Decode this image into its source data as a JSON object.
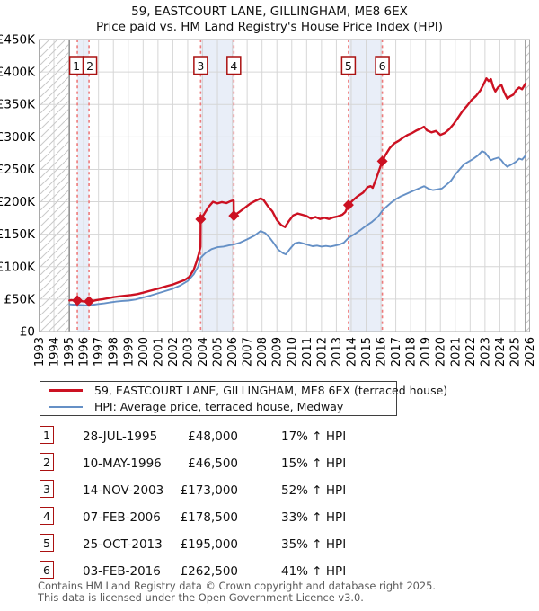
{
  "header": {
    "title": "59, EASTCOURT LANE, GILLINGHAM, ME8 6EX",
    "subtitle": "Price paid vs. HM Land Registry's House Price Index (HPI)"
  },
  "legend": {
    "entries": [
      {
        "label": "59, EASTCOURT LANE, GILLINGHAM, ME8 6EX (terraced house)",
        "color": "#cc1122"
      },
      {
        "label": "HPI: Average price, terraced house, Medway",
        "color": "#6590c6"
      }
    ]
  },
  "table": {
    "rows": [
      {
        "num": "1",
        "date": "28-JUL-1995",
        "price": "£48,000",
        "hpi": "17% ↑ HPI"
      },
      {
        "num": "2",
        "date": "10-MAY-1996",
        "price": "£46,500",
        "hpi": "15% ↑ HPI"
      },
      {
        "num": "3",
        "date": "14-NOV-2003",
        "price": "£173,000",
        "hpi": "52% ↑ HPI"
      },
      {
        "num": "4",
        "date": "07-FEB-2006",
        "price": "£178,500",
        "hpi": "33% ↑ HPI"
      },
      {
        "num": "5",
        "date": "25-OCT-2013",
        "price": "£195,000",
        "hpi": "35% ↑ HPI"
      },
      {
        "num": "6",
        "date": "03-FEB-2016",
        "price": "£262,500",
        "hpi": "41% ↑ HPI"
      }
    ]
  },
  "footer": {
    "line1": "Contains HM Land Registry data © Crown copyright and database right 2025.",
    "line2": "This data is licensed under the Open Government Licence v3.0."
  },
  "chart_data": {
    "type": "line",
    "title": "59, EASTCOURT LANE, GILLINGHAM, ME8 6EX",
    "subtitle": "Price paid vs. HM Land Registry's House Price Index (HPI)",
    "x_axis": {
      "range": [
        1993,
        2026
      ],
      "years": [
        1993,
        1994,
        1995,
        1996,
        1997,
        1998,
        1999,
        2000,
        2001,
        2002,
        2003,
        2004,
        2005,
        2006,
        2007,
        2008,
        2009,
        2010,
        2011,
        2012,
        2013,
        2014,
        2015,
        2016,
        2017,
        2018,
        2019,
        2020,
        2021,
        2022,
        2023,
        2024,
        2025,
        2026
      ]
    },
    "y_axis": {
      "range": [
        0,
        450000
      ],
      "ticks": [
        {
          "value": 0,
          "label": "£0"
        },
        {
          "value": 50000,
          "label": "£50K"
        },
        {
          "value": 100000,
          "label": "£100K"
        },
        {
          "value": 150000,
          "label": "£150K"
        },
        {
          "value": 200000,
          "label": "£200K"
        },
        {
          "value": 250000,
          "label": "£250K"
        },
        {
          "value": 300000,
          "label": "£300K"
        },
        {
          "value": 350000,
          "label": "£350K"
        },
        {
          "value": 400000,
          "label": "£400K"
        },
        {
          "value": 450000,
          "label": "£450K"
        }
      ]
    },
    "grid": true,
    "legend_position": "below",
    "hatch_regions": [
      [
        1993,
        1995.04
      ],
      [
        2025.72,
        2026
      ]
    ],
    "shaded_bands": [
      [
        1995.573,
        1996.359
      ],
      [
        2003.871,
        2006.104
      ],
      [
        2013.816,
        2016.093
      ]
    ],
    "sales": [
      {
        "n": "1",
        "year": 1995.573,
        "price": 48000
      },
      {
        "n": "2",
        "year": 1996.359,
        "price": 46500
      },
      {
        "n": "3",
        "year": 2003.871,
        "price": 173000
      },
      {
        "n": "4",
        "year": 2006.104,
        "price": 178500
      },
      {
        "n": "5",
        "year": 2013.816,
        "price": 195000
      },
      {
        "n": "6",
        "year": 2016.093,
        "price": 262500
      }
    ],
    "colors": {
      "band": "#e9eef8",
      "dash": "#ee7b7b",
      "grid": "#d6d6d6",
      "border": "#a9a9a9",
      "hatch": "#c9c9c9",
      "hatch_edge": "#8f8f8f",
      "box_border": "#aa1111",
      "tick_text": "#000000"
    },
    "series": [
      {
        "name": "59, EASTCOURT LANE, GILLINGHAM, ME8 6EX (terraced house)",
        "color": "#cc1122",
        "width": 2.4,
        "points": [
          [
            1995.04,
            48000
          ],
          [
            1995.2,
            48500
          ],
          [
            1995.4,
            47800
          ],
          [
            1995.573,
            48000
          ],
          [
            1995.8,
            47000
          ],
          [
            1996.0,
            46500
          ],
          [
            1996.2,
            46000
          ],
          [
            1996.359,
            46500
          ],
          [
            1996.6,
            47200
          ],
          [
            1996.8,
            48200
          ],
          [
            1997.0,
            49000
          ],
          [
            1997.3,
            50000
          ],
          [
            1997.6,
            51200
          ],
          [
            1998.0,
            53000
          ],
          [
            1998.4,
            54300
          ],
          [
            1998.8,
            55300
          ],
          [
            1999.2,
            56300
          ],
          [
            1999.6,
            57800
          ],
          [
            2000.0,
            60000
          ],
          [
            2000.4,
            62500
          ],
          [
            2000.8,
            65000
          ],
          [
            2001.2,
            67500
          ],
          [
            2001.6,
            70000
          ],
          [
            2002.0,
            72500
          ],
          [
            2002.4,
            76000
          ],
          [
            2002.8,
            79500
          ],
          [
            2003.1,
            84000
          ],
          [
            2003.4,
            95000
          ],
          [
            2003.6,
            108000
          ],
          [
            2003.75,
            120000
          ],
          [
            2003.86,
            131000
          ],
          [
            2003.871,
            173000
          ],
          [
            2004.1,
            181000
          ],
          [
            2004.4,
            192000
          ],
          [
            2004.7,
            200000
          ],
          [
            2005.0,
            197500
          ],
          [
            2005.3,
            199500
          ],
          [
            2005.6,
            198000
          ],
          [
            2005.9,
            201000
          ],
          [
            2006.09,
            202000
          ],
          [
            2006.104,
            178500
          ],
          [
            2006.4,
            183000
          ],
          [
            2006.8,
            190000
          ],
          [
            2007.2,
            197000
          ],
          [
            2007.6,
            202000
          ],
          [
            2007.9,
            205000
          ],
          [
            2008.1,
            203000
          ],
          [
            2008.4,
            193000
          ],
          [
            2008.7,
            185000
          ],
          [
            2009.0,
            172000
          ],
          [
            2009.3,
            164000
          ],
          [
            2009.55,
            161000
          ],
          [
            2009.8,
            170000
          ],
          [
            2010.1,
            179000
          ],
          [
            2010.4,
            182000
          ],
          [
            2010.7,
            180000
          ],
          [
            2011.0,
            178000
          ],
          [
            2011.3,
            174000
          ],
          [
            2011.6,
            176500
          ],
          [
            2011.9,
            173500
          ],
          [
            2012.2,
            175500
          ],
          [
            2012.5,
            173500
          ],
          [
            2012.8,
            176000
          ],
          [
            2013.1,
            177500
          ],
          [
            2013.4,
            180000
          ],
          [
            2013.6,
            184000
          ],
          [
            2013.816,
            195000
          ],
          [
            2014.1,
            202000
          ],
          [
            2014.4,
            208000
          ],
          [
            2014.8,
            214000
          ],
          [
            2015.1,
            222500
          ],
          [
            2015.3,
            224000
          ],
          [
            2015.45,
            221500
          ],
          [
            2015.7,
            237000
          ],
          [
            2015.9,
            250000
          ],
          [
            2016.093,
            262500
          ],
          [
            2016.3,
            272000
          ],
          [
            2016.6,
            283000
          ],
          [
            2016.9,
            290000
          ],
          [
            2017.2,
            294000
          ],
          [
            2017.5,
            299000
          ],
          [
            2017.8,
            303000
          ],
          [
            2018.1,
            306000
          ],
          [
            2018.4,
            310000
          ],
          [
            2018.7,
            313000
          ],
          [
            2018.9,
            315500
          ],
          [
            2019.1,
            310000
          ],
          [
            2019.4,
            307000
          ],
          [
            2019.7,
            309000
          ],
          [
            2020.0,
            303000
          ],
          [
            2020.3,
            306000
          ],
          [
            2020.6,
            312000
          ],
          [
            2020.9,
            320000
          ],
          [
            2021.2,
            330000
          ],
          [
            2021.5,
            340000
          ],
          [
            2021.8,
            348000
          ],
          [
            2022.1,
            357000
          ],
          [
            2022.4,
            363000
          ],
          [
            2022.7,
            372000
          ],
          [
            2022.95,
            383000
          ],
          [
            2023.1,
            390000
          ],
          [
            2023.25,
            386000
          ],
          [
            2023.4,
            389000
          ],
          [
            2023.55,
            377000
          ],
          [
            2023.7,
            370000
          ],
          [
            2023.9,
            377000
          ],
          [
            2024.1,
            380000
          ],
          [
            2024.3,
            368000
          ],
          [
            2024.5,
            359000
          ],
          [
            2024.7,
            362500
          ],
          [
            2024.9,
            365000
          ],
          [
            2025.1,
            372000
          ],
          [
            2025.3,
            376000
          ],
          [
            2025.5,
            373500
          ],
          [
            2025.72,
            382000
          ]
        ]
      },
      {
        "name": "HPI: Average price, terraced house, Medway",
        "color": "#6590c6",
        "width": 1.9,
        "points": [
          [
            1995.04,
            42000
          ],
          [
            1995.3,
            41500
          ],
          [
            1995.573,
            41000
          ],
          [
            1995.8,
            40800
          ],
          [
            1996.1,
            40400
          ],
          [
            1996.359,
            40500
          ],
          [
            1996.7,
            41500
          ],
          [
            1997.0,
            42500
          ],
          [
            1997.4,
            43500
          ],
          [
            1997.8,
            45000
          ],
          [
            1998.2,
            46200
          ],
          [
            1998.6,
            47200
          ],
          [
            1999.0,
            47800
          ],
          [
            1999.5,
            49500
          ],
          [
            2000.0,
            52500
          ],
          [
            2000.5,
            55500
          ],
          [
            2001.0,
            59000
          ],
          [
            2001.5,
            62500
          ],
          [
            2002.0,
            66000
          ],
          [
            2002.5,
            71000
          ],
          [
            2003.0,
            78000
          ],
          [
            2003.4,
            88000
          ],
          [
            2003.7,
            100000
          ],
          [
            2003.871,
            113800
          ],
          [
            2004.2,
            121000
          ],
          [
            2004.6,
            127000
          ],
          [
            2005.0,
            130000
          ],
          [
            2005.4,
            131000
          ],
          [
            2005.8,
            133000
          ],
          [
            2006.104,
            134200
          ],
          [
            2006.5,
            137000
          ],
          [
            2007.0,
            142000
          ],
          [
            2007.5,
            148000
          ],
          [
            2007.9,
            155000
          ],
          [
            2008.2,
            152000
          ],
          [
            2008.5,
            145000
          ],
          [
            2008.8,
            136000
          ],
          [
            2009.1,
            126000
          ],
          [
            2009.4,
            121000
          ],
          [
            2009.6,
            119000
          ],
          [
            2009.9,
            128000
          ],
          [
            2010.2,
            136000
          ],
          [
            2010.5,
            137500
          ],
          [
            2010.8,
            135500
          ],
          [
            2011.1,
            133500
          ],
          [
            2011.4,
            131500
          ],
          [
            2011.7,
            132500
          ],
          [
            2012.0,
            131000
          ],
          [
            2012.3,
            132000
          ],
          [
            2012.6,
            131000
          ],
          [
            2012.9,
            132500
          ],
          [
            2013.2,
            134000
          ],
          [
            2013.5,
            137000
          ],
          [
            2013.816,
            144400
          ],
          [
            2014.2,
            150000
          ],
          [
            2014.6,
            156000
          ],
          [
            2015.0,
            163000
          ],
          [
            2015.4,
            169000
          ],
          [
            2015.8,
            177000
          ],
          [
            2016.093,
            186200
          ],
          [
            2016.4,
            193000
          ],
          [
            2016.7,
            199000
          ],
          [
            2017.0,
            204000
          ],
          [
            2017.3,
            208000
          ],
          [
            2017.6,
            211000
          ],
          [
            2017.9,
            214000
          ],
          [
            2018.2,
            217000
          ],
          [
            2018.5,
            220000
          ],
          [
            2018.9,
            224000
          ],
          [
            2019.2,
            220000
          ],
          [
            2019.5,
            218000
          ],
          [
            2019.8,
            219000
          ],
          [
            2020.1,
            220500
          ],
          [
            2020.4,
            226000
          ],
          [
            2020.7,
            232000
          ],
          [
            2021.0,
            242000
          ],
          [
            2021.3,
            250000
          ],
          [
            2021.6,
            258000
          ],
          [
            2021.9,
            262000
          ],
          [
            2022.2,
            266000
          ],
          [
            2022.5,
            271000
          ],
          [
            2022.8,
            278000
          ],
          [
            2023.0,
            276000
          ],
          [
            2023.2,
            270000
          ],
          [
            2023.4,
            264000
          ],
          [
            2023.6,
            266000
          ],
          [
            2023.9,
            268000
          ],
          [
            2024.1,
            264000
          ],
          [
            2024.3,
            258000
          ],
          [
            2024.5,
            254000
          ],
          [
            2024.7,
            256500
          ],
          [
            2024.9,
            259000
          ],
          [
            2025.1,
            262000
          ],
          [
            2025.3,
            266500
          ],
          [
            2025.5,
            265000
          ],
          [
            2025.72,
            271000
          ]
        ]
      }
    ]
  }
}
